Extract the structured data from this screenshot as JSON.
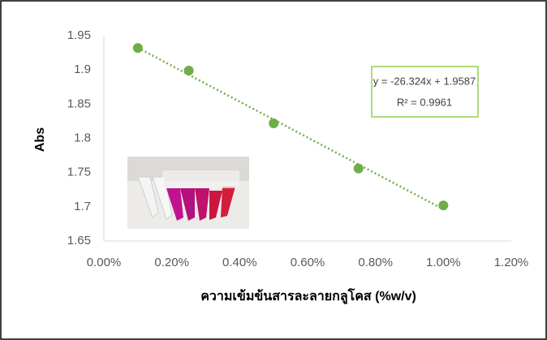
{
  "chart_data": {
    "type": "scatter",
    "x": [
      0.1,
      0.25,
      0.5,
      0.75,
      1.0
    ],
    "values": [
      1.932,
      1.899,
      1.822,
      1.756,
      1.702
    ],
    "color": "#70ad47",
    "trendline": true,
    "xlim": [
      0,
      1.2
    ],
    "xticks": [
      {
        "value": 0,
        "label": "0.00%"
      },
      {
        "value": 0.2,
        "label": "0.20%"
      },
      {
        "value": 0.4,
        "label": "0.40%"
      },
      {
        "value": 0.6,
        "label": "0.60%"
      },
      {
        "value": 0.8,
        "label": "0.80%"
      },
      {
        "value": 1.0,
        "label": "1.00%"
      },
      {
        "value": 1.2,
        "label": "1.20%"
      }
    ],
    "ylim": [
      1.65,
      1.95
    ],
    "yticks": [
      1.65,
      1.7,
      1.75,
      1.8,
      1.85,
      1.9,
      1.95
    ],
    "grid": false,
    "x_label": "ความเข้มข้นสารละลายกลูโคส (%w/v)",
    "y_label": "Abs",
    "equation": "y = -26.324x + 1.9587",
    "r_squared": "R² = 0.9961"
  }
}
